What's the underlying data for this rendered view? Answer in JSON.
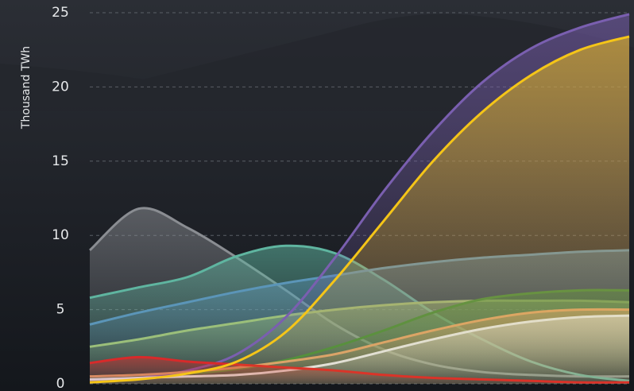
{
  "chart_data": {
    "type": "area",
    "y_label": "Thousand TWh",
    "ylim": [
      0,
      25
    ],
    "yticks": [
      0,
      5,
      10,
      15,
      20,
      25
    ],
    "grid": true,
    "series": [
      {
        "color": "#8a8d92",
        "values": [
          9,
          11.8,
          10.5,
          8.5,
          6.3,
          4,
          2.3,
          1.3,
          0.8,
          0.6,
          0.5,
          0.5
        ]
      },
      {
        "color": "#5fb5a0",
        "values": [
          5.8,
          6.5,
          7.2,
          8.6,
          9.3,
          8.8,
          7,
          4.8,
          3,
          1.5,
          0.6,
          0.2
        ]
      },
      {
        "color": "#5b95b8",
        "values": [
          4,
          4.8,
          5.5,
          6.2,
          6.8,
          7.3,
          7.8,
          8.2,
          8.5,
          8.7,
          8.9,
          9.0
        ]
      },
      {
        "color": "#9bbf7a",
        "values": [
          2.5,
          3,
          3.6,
          4.1,
          4.6,
          5,
          5.3,
          5.5,
          5.6,
          5.6,
          5.6,
          5.5
        ]
      },
      {
        "color": "#3f8f35",
        "values": [
          0.5,
          0.6,
          0.7,
          1,
          1.6,
          2.5,
          3.6,
          4.8,
          5.7,
          6.1,
          6.3,
          6.3
        ]
      },
      {
        "color": "#7a5fb0",
        "values": [
          0.2,
          0.4,
          0.9,
          2,
          4.5,
          8.5,
          13,
          17,
          20.3,
          22.6,
          24,
          24.9
        ]
      },
      {
        "color": "#d8a070",
        "values": [
          0.5,
          0.6,
          0.8,
          1.1,
          1.5,
          2,
          2.8,
          3.6,
          4.3,
          4.8,
          5,
          5
        ]
      },
      {
        "color": "#e0e2e6",
        "values": [
          0.3,
          0.4,
          0.5,
          0.6,
          0.9,
          1.4,
          2.2,
          3,
          3.7,
          4.2,
          4.5,
          4.6
        ]
      },
      {
        "color": "#d82a2a",
        "values": [
          1.4,
          1.8,
          1.5,
          1.3,
          1.1,
          0.9,
          0.6,
          0.4,
          0.3,
          0.2,
          0.1,
          0.1
        ]
      },
      {
        "color": "#f5c518",
        "values": [
          0.1,
          0.3,
          0.7,
          1.5,
          3.5,
          7,
          11,
          15,
          18.3,
          20.8,
          22.5,
          23.4
        ]
      }
    ]
  }
}
